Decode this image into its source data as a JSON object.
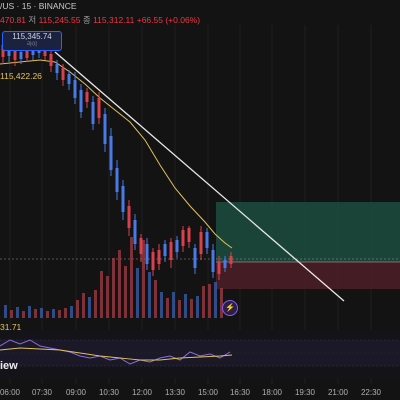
{
  "header": {
    "symbol_line": "/US · 15 · BINANCE",
    "ohlc": {
      "open_tail": "470.81",
      "high_label": "저",
      "high": "115,245.55",
      "close_label": "종",
      "close": "115,312.11",
      "change": "+66.55 (+0.06%)"
    }
  },
  "price_tag": {
    "price": "115,345.74",
    "sub": "라이"
  },
  "ma_value": "115,422.26",
  "volume_value": "31.71",
  "watermark": "iew",
  "alert_icon": "lightning-icon",
  "time_axis": [
    "06:00",
    "07:30",
    "09:00",
    "10:30",
    "12:00",
    "13:30",
    "15:00",
    "16:30",
    "18:00",
    "19:30",
    "21:00",
    "22:30"
  ],
  "colors": {
    "up": "#4a7ae6",
    "down": "#d8424e",
    "ma": "#e0c060",
    "trendline": "#e8e8e8",
    "target_zone": "#1d4d40",
    "stop_zone": "#4a1e26",
    "oscillator": "#8b6fd8"
  }
}
